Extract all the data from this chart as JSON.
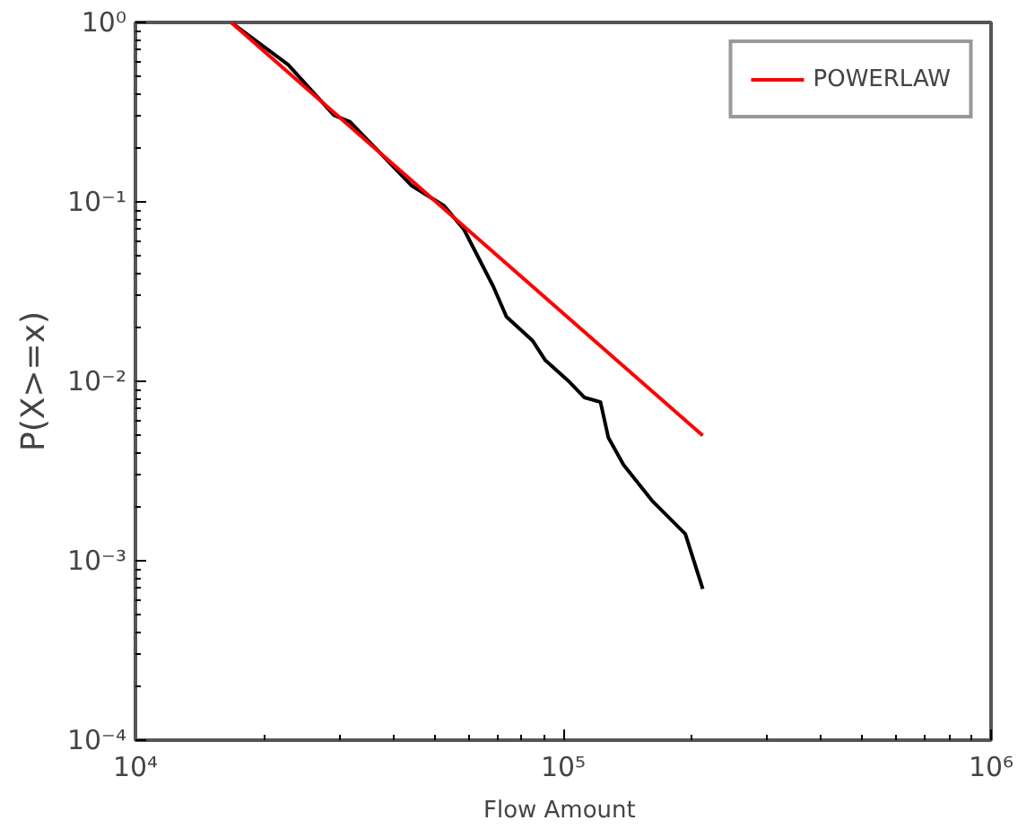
{
  "chart_data": {
    "type": "line",
    "xlabel": "Flow  Amount",
    "ylabel": "P(X>=x)",
    "log": "xy",
    "grid": false,
    "legend": "top right",
    "marker": "none",
    "line_style": "solid",
    "xlim": [
      10000,
      1000000
    ],
    "ylim": [
      0.0001,
      1
    ],
    "xticks": [
      {
        "value": 10000,
        "label": "10⁴"
      },
      {
        "value": 100000,
        "label": "10⁵"
      },
      {
        "value": 1000000,
        "label": "10⁶"
      }
    ],
    "yticks": [
      {
        "value": 0.0001,
        "label": "10⁻⁴"
      },
      {
        "value": 0.001,
        "label": "10⁻³"
      },
      {
        "value": 0.01,
        "label": "10⁻²"
      },
      {
        "value": 0.1,
        "label": "10⁻¹"
      },
      {
        "value": 1,
        "label": "10⁰"
      }
    ],
    "series": [
      {
        "color": "#000000",
        "x": [
          16740,
          22750,
          29100,
          31750,
          37170,
          44260,
          52700,
          58600,
          68660,
          73650,
          84700,
          90800,
          102600,
          112000,
          122200,
          127500,
          138300,
          161900,
          192900,
          211900
        ],
        "values": [
          1.0,
          0.581,
          0.304,
          0.279,
          0.189,
          0.123,
          0.095,
          0.0702,
          0.0337,
          0.0229,
          0.0169,
          0.0131,
          0.0101,
          0.00813,
          0.00766,
          0.00485,
          0.00343,
          0.00214,
          0.00141,
          0.000697
        ]
      },
      {
        "name": "POWERLAW",
        "color": "#ff0000",
        "x": [
          16740,
          211900
        ],
        "values": [
          1.0,
          0.00498
        ]
      }
    ]
  }
}
